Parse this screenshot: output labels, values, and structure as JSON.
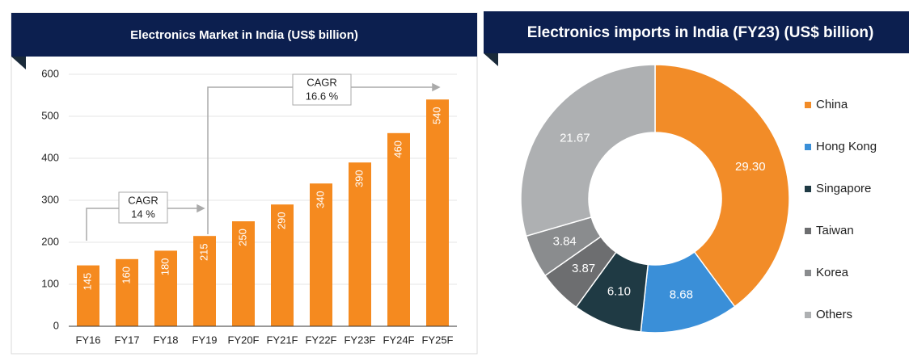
{
  "chart_data": [
    {
      "type": "bar",
      "title": "Electronics Market in India (US$ billion)",
      "categories": [
        "FY16",
        "FY17",
        "FY18",
        "FY19",
        "FY20F",
        "FY21F",
        "FY22F",
        "FY23F",
        "FY24F",
        "FY25F"
      ],
      "values": [
        145,
        160,
        180,
        215,
        250,
        290,
        340,
        390,
        460,
        540
      ],
      "color": "#f58a1f",
      "ylim": [
        0,
        600
      ],
      "yticks": [
        0,
        100,
        200,
        300,
        400,
        500,
        600
      ],
      "grid": true,
      "annotations": [
        {
          "line1": "CAGR",
          "line2": "14 %"
        },
        {
          "line1": "CAGR",
          "line2": "16.6 %"
        }
      ]
    },
    {
      "type": "donut",
      "title": "Electronics imports in India (FY23) (US$ billion)",
      "categories": [
        "China",
        "Hong Kong",
        "Singapore",
        "Taiwan",
        "Korea",
        "Others"
      ],
      "values": [
        29.3,
        8.68,
        6.1,
        3.87,
        3.84,
        21.67
      ],
      "value_labels": [
        "29.30",
        "8.68",
        "6.10",
        "3.87",
        "3.84",
        "21.67"
      ],
      "colors": [
        "#f28c28",
        "#3a8fd8",
        "#1f3a44",
        "#6d6e70",
        "#8a8c8e",
        "#aeb0b2"
      ],
      "legend": "right"
    }
  ]
}
